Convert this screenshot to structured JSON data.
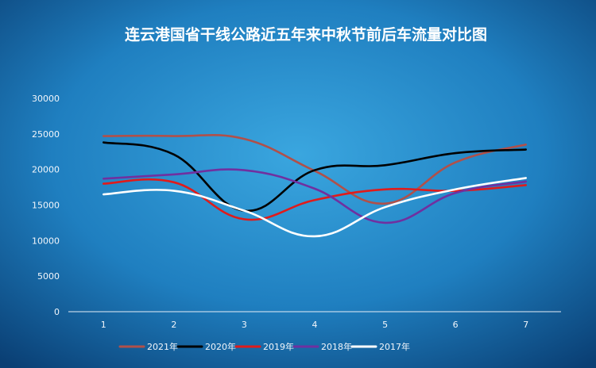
{
  "chart_data": {
    "type": "line",
    "title": "连云港国省干线公路近五年来中秋节前后车流量对比图",
    "xlabel": "",
    "ylabel": "",
    "x": [
      1,
      2,
      3,
      4,
      5,
      6,
      7
    ],
    "ylim": [
      0,
      30000
    ],
    "yticks": [
      0,
      5000,
      10000,
      15000,
      20000,
      25000,
      30000
    ],
    "grid": false,
    "legend_position": "bottom",
    "line_style": "smooth",
    "series": [
      {
        "name": "2021年",
        "color": "#b0504a",
        "values": [
          24700,
          24700,
          24300,
          19800,
          15200,
          21000,
          23500
        ]
      },
      {
        "name": "2020年",
        "color": "#000000",
        "values": [
          23800,
          22100,
          14200,
          19900,
          20600,
          22300,
          22800
        ]
      },
      {
        "name": "2019年",
        "color": "#e01b1b",
        "values": [
          18000,
          18200,
          13000,
          15700,
          17200,
          17000,
          17800
        ]
      },
      {
        "name": "2018年",
        "color": "#7030a0",
        "values": [
          18700,
          19300,
          19900,
          17300,
          12500,
          16700,
          18300
        ]
      },
      {
        "name": "2017年",
        "color": "#ffffff",
        "values": [
          16500,
          17000,
          14200,
          10600,
          14700,
          17200,
          18800
        ]
      }
    ]
  }
}
